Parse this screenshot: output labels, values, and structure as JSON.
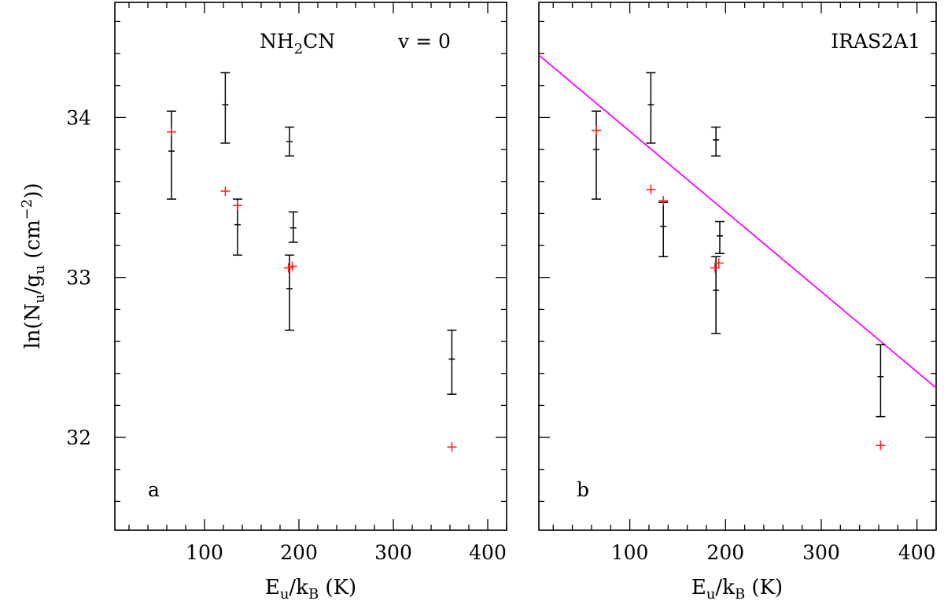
{
  "chart_data": [
    {
      "type": "scatter",
      "panel_label": "a",
      "annotations": [
        "NH",
        "2",
        "CN",
        "v = 0"
      ],
      "xlabel": {
        "main1": "E",
        "sub1": "u",
        "main2": "/k",
        "sub2": "B",
        "main3": " (K)"
      },
      "ylabel": {
        "main1": "ln(N",
        "sub1": "u",
        "main2": "/g",
        "sub2": "u",
        "main3": " (cm",
        "sup": "−2",
        "main4": "))"
      },
      "xlim": [
        5,
        420
      ],
      "ylim": [
        31.42,
        34.72
      ],
      "xticks": [
        100,
        200,
        300,
        400
      ],
      "xtick_labels": [
        "100",
        "200",
        "300",
        "400"
      ],
      "yticks": [
        32,
        33,
        34
      ],
      "ytick_labels": [
        "32",
        "33",
        "34"
      ],
      "observed": [
        {
          "x": 65,
          "y": 33.79,
          "low": 33.49,
          "high": 34.04
        },
        {
          "x": 122,
          "y": 34.08,
          "low": 33.84,
          "high": 34.28
        },
        {
          "x": 135,
          "y": 33.33,
          "low": 33.14,
          "high": 33.49
        },
        {
          "x": 190,
          "y": 32.93,
          "low": 32.67,
          "high": 33.14
        },
        {
          "x": 190,
          "y": 33.85,
          "low": 33.76,
          "high": 33.94
        },
        {
          "x": 194,
          "y": 33.31,
          "low": 33.22,
          "high": 33.41
        },
        {
          "x": 362,
          "y": 32.49,
          "low": 32.27,
          "high": 32.67
        }
      ],
      "model": [
        {
          "x": 65,
          "y": 33.91
        },
        {
          "x": 122,
          "y": 33.54
        },
        {
          "x": 135,
          "y": 33.45
        },
        {
          "x": 189,
          "y": 33.06
        },
        {
          "x": 193,
          "y": 33.07
        },
        {
          "x": 362,
          "y": 31.94
        }
      ],
      "fit_line": null
    },
    {
      "type": "scatter",
      "panel_label": "b",
      "annotations": [
        "IRAS2A1"
      ],
      "xlabel": {
        "main1": "E",
        "sub1": "u",
        "main2": "/k",
        "sub2": "B",
        "main3": " (K)"
      },
      "ylabel": null,
      "xlim": [
        5,
        420
      ],
      "ylim": [
        31.42,
        34.72
      ],
      "xticks": [
        100,
        200,
        300,
        400
      ],
      "xtick_labels": [
        "100",
        "200",
        "300",
        "400"
      ],
      "yticks": [
        32,
        33,
        34
      ],
      "ytick_labels": [
        "",
        "",
        ""
      ],
      "observed": [
        {
          "x": 65,
          "y": 33.8,
          "low": 33.49,
          "high": 34.04
        },
        {
          "x": 122,
          "y": 34.08,
          "low": 33.84,
          "high": 34.28
        },
        {
          "x": 135,
          "y": 33.32,
          "low": 33.13,
          "high": 33.47
        },
        {
          "x": 190,
          "y": 32.92,
          "low": 32.65,
          "high": 33.13
        },
        {
          "x": 190,
          "y": 33.86,
          "low": 33.76,
          "high": 33.94
        },
        {
          "x": 194,
          "y": 33.26,
          "low": 33.15,
          "high": 33.35
        },
        {
          "x": 362,
          "y": 32.38,
          "low": 32.13,
          "high": 32.58
        }
      ],
      "model": [
        {
          "x": 65,
          "y": 33.92
        },
        {
          "x": 122,
          "y": 33.55
        },
        {
          "x": 135,
          "y": 33.48
        },
        {
          "x": 189,
          "y": 33.06
        },
        {
          "x": 193,
          "y": 33.09
        },
        {
          "x": 362,
          "y": 31.95
        }
      ],
      "fit_line": {
        "x": [
          5,
          420
        ],
        "y": [
          34.39,
          32.31
        ]
      }
    }
  ],
  "colors": {
    "observed": "#000000",
    "model": "#ff2020",
    "fit": "#ff00ff"
  }
}
